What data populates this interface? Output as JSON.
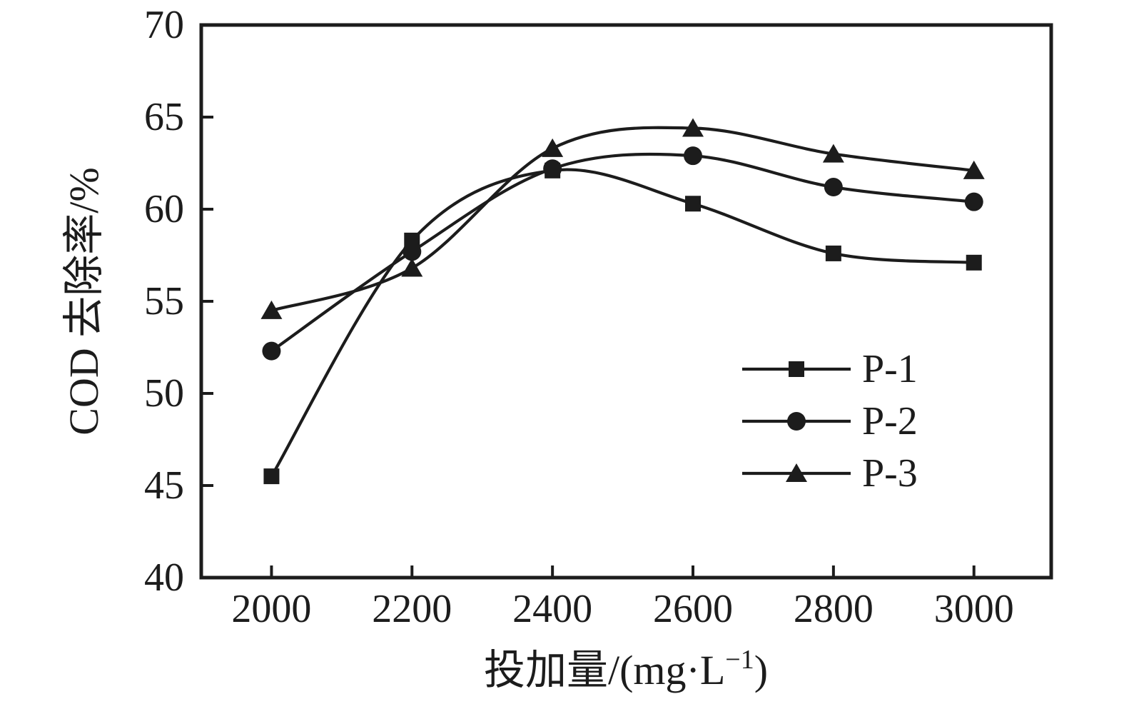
{
  "figure": {
    "background": "#ffffff",
    "ink_color": "#1c1c1c"
  },
  "chart_data": {
    "type": "line",
    "title": "",
    "xlabel": "投加量/(mg·L⁻¹)",
    "xlabel_parts": {
      "prefix": "投加量/(mg·L",
      "sup": "−1",
      "suffix": ")"
    },
    "ylabel": "COD 去除率/%",
    "x": [
      2000,
      2200,
      2400,
      2600,
      2800,
      3000
    ],
    "series": [
      {
        "name": "P-1",
        "marker": "square",
        "values": [
          45.5,
          58.3,
          62.1,
          60.3,
          57.6,
          57.1
        ]
      },
      {
        "name": "P-2",
        "marker": "circle",
        "values": [
          52.3,
          57.7,
          62.2,
          62.9,
          61.2,
          60.4
        ]
      },
      {
        "name": "P-3",
        "marker": "triangle",
        "values": [
          54.5,
          56.8,
          63.3,
          64.4,
          63.0,
          62.1
        ]
      }
    ],
    "xticks": [
      2000,
      2200,
      2400,
      2600,
      2800,
      3000
    ],
    "yticks": [
      40,
      45,
      50,
      55,
      60,
      65,
      70
    ],
    "xlim": [
      1900,
      3110
    ],
    "ylim": [
      40,
      70
    ],
    "grid": false,
    "line_smoothing": "spline",
    "legend": {
      "position": "inside-right",
      "entries": [
        "P-1",
        "P-2",
        "P-3"
      ]
    }
  }
}
